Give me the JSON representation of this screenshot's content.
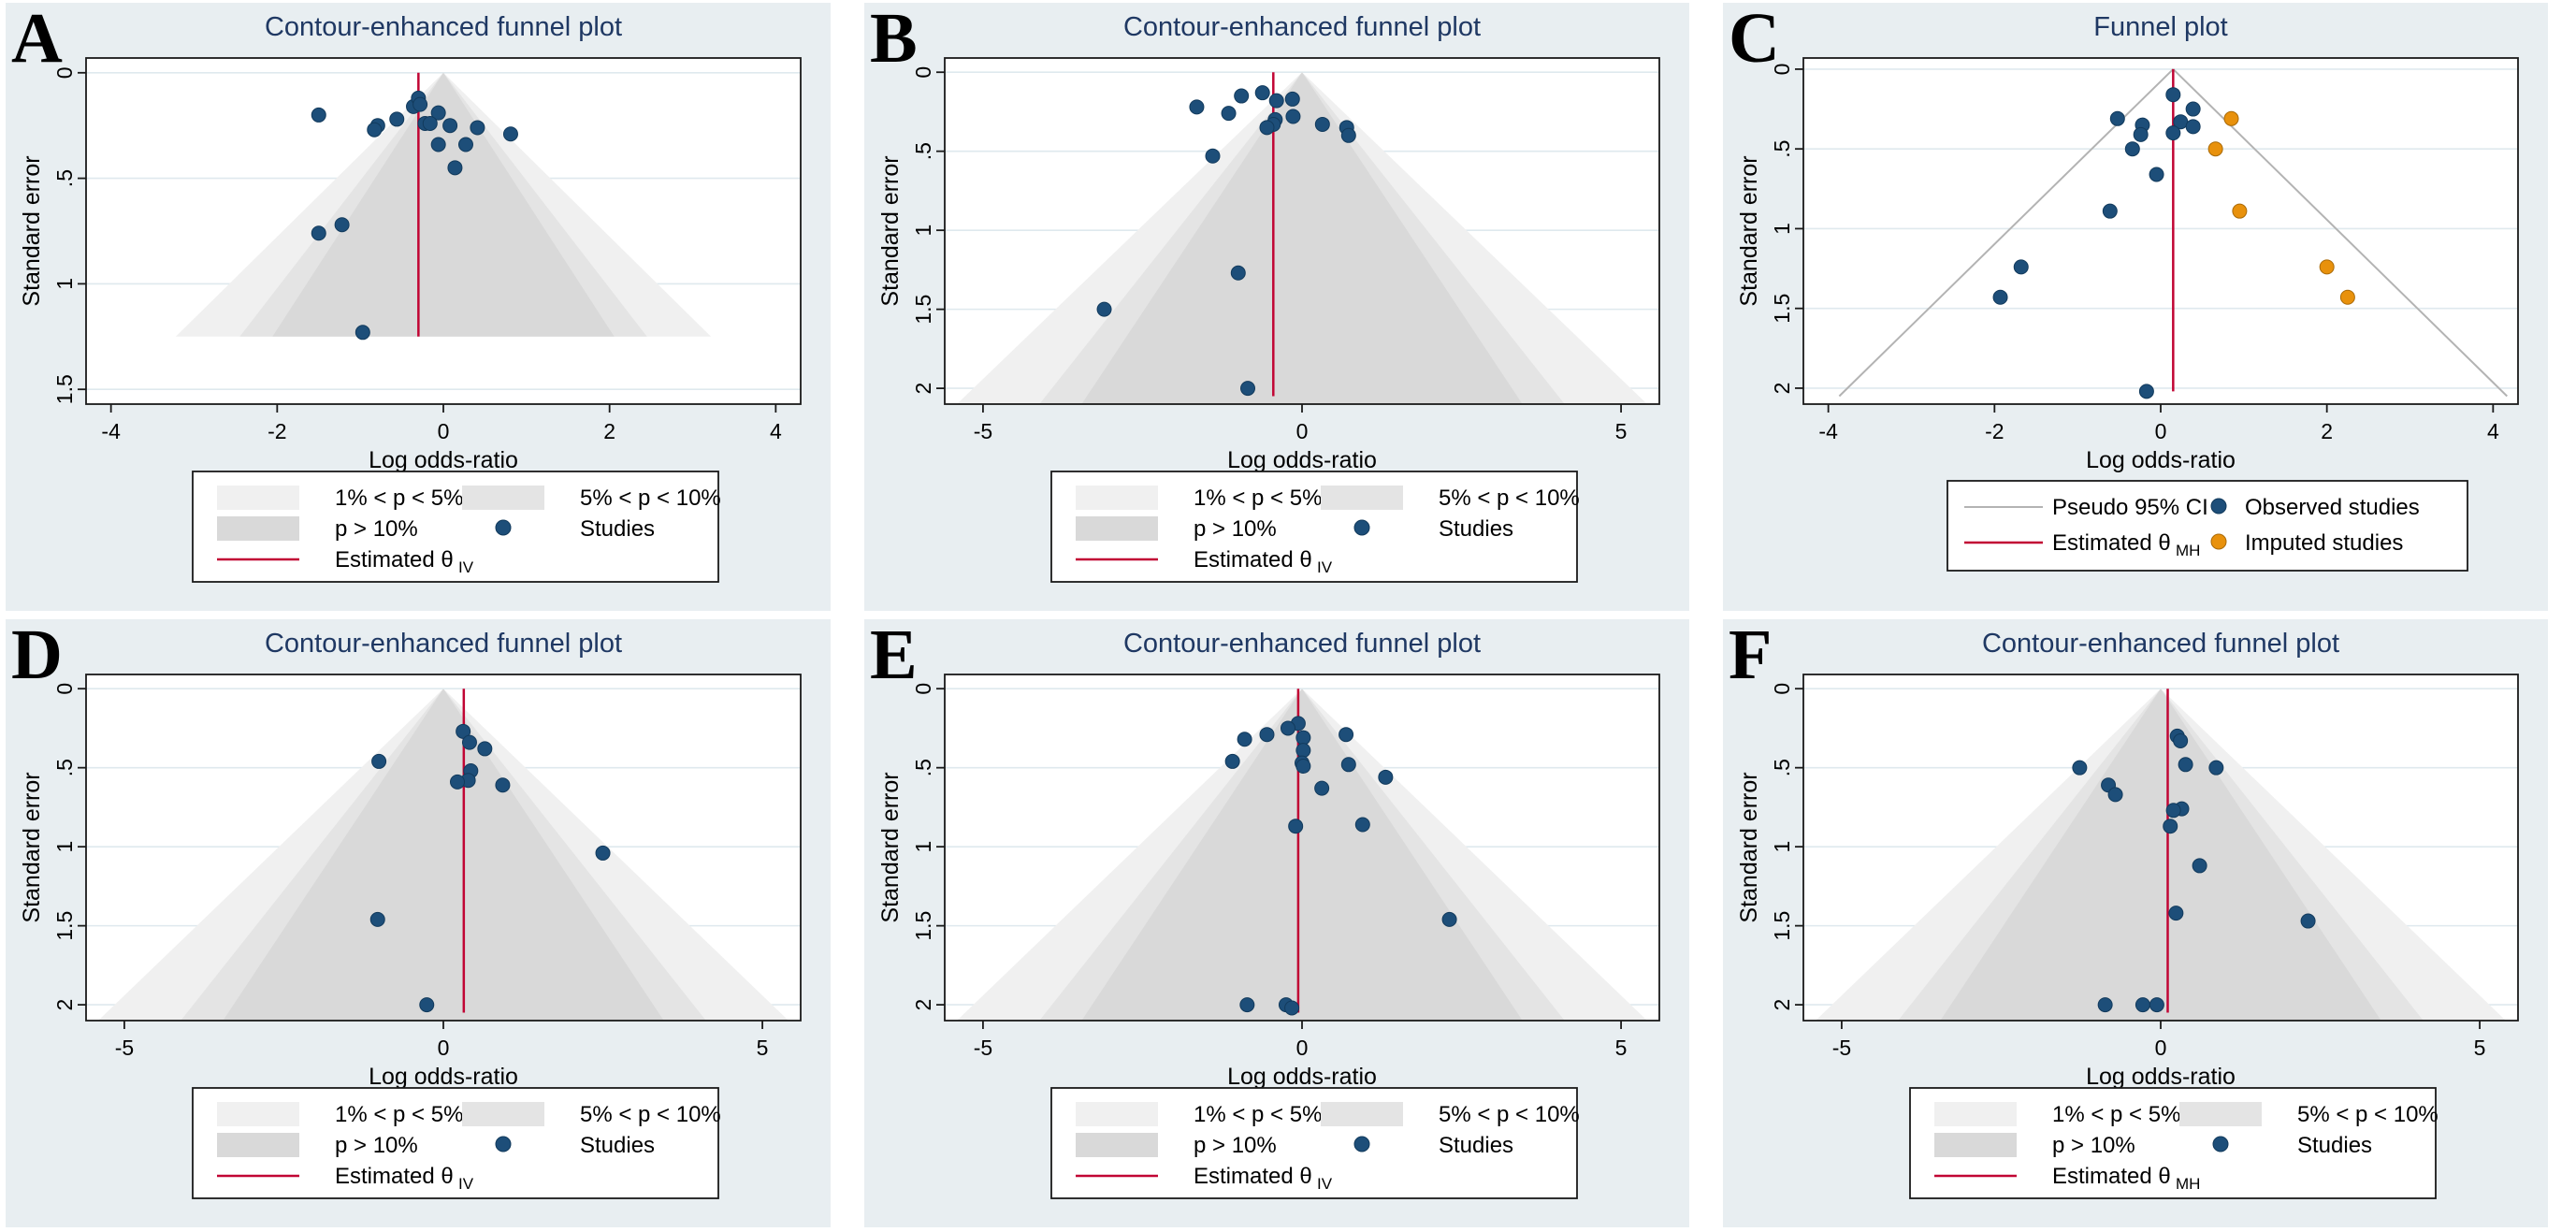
{
  "style": {
    "background": "#ffffff",
    "panel_bg": "#e8eef1",
    "title_color": "#1f3863",
    "text_color": "#000000",
    "axis_color": "#1a1a1a",
    "grid_color": "#dfe9ee",
    "point_color": "#1d4e79",
    "point_stroke": "#123a5c",
    "imputed_color": "#e8910c",
    "imputed_stroke": "#a96a08",
    "estimate_line_color": "#c10534",
    "pseudo_ci_color": "#b3b3b3",
    "contour_colors": [
      "#f0f0f0",
      "#e4e4e4",
      "#d9d9d9"
    ],
    "legend_bg": "#ffffff"
  },
  "chart_data": [
    {
      "panel": "A",
      "type": "contour-funnel",
      "title": "Contour-enhanced funnel plot",
      "xlabel": "Log odds-ratio",
      "ylabel": "Standard error",
      "x_range": [
        -4.3,
        4.3
      ],
      "y_range": [
        -0.07,
        1.57
      ],
      "x_ticks": [
        {
          "v": -4,
          "l": "-4"
        },
        {
          "v": -2,
          "l": "-2"
        },
        {
          "v": 0,
          "l": "0"
        },
        {
          "v": 2,
          "l": "2"
        },
        {
          "v": 4,
          "l": "4"
        }
      ],
      "y_ticks": [
        {
          "v": 0,
          "l": "0"
        },
        {
          "v": 0.5,
          "l": ".5"
        },
        {
          "v": 1,
          "l": "1"
        },
        {
          "v": 1.5,
          "l": "1.5"
        }
      ],
      "significance_z": {
        "p01": 2.576,
        "p05": 1.96,
        "p10": 1.645
      },
      "funnel_se_max": 1.25,
      "estimate": {
        "value": -0.3,
        "line_to": 1.25,
        "label": "Estimated θ",
        "sub": "IV"
      },
      "studies": [
        [
          -1.5,
          0.2
        ],
        [
          -0.36,
          0.16
        ],
        [
          -0.3,
          0.12
        ],
        [
          -0.28,
          0.15
        ],
        [
          -0.06,
          0.19
        ],
        [
          -0.56,
          0.22
        ],
        [
          -0.79,
          0.25
        ],
        [
          -0.83,
          0.27
        ],
        [
          -0.22,
          0.24
        ],
        [
          -0.16,
          0.24
        ],
        [
          0.08,
          0.25
        ],
        [
          0.41,
          0.26
        ],
        [
          0.81,
          0.29
        ],
        [
          -0.06,
          0.34
        ],
        [
          0.27,
          0.34
        ],
        [
          0.14,
          0.45
        ],
        [
          -1.22,
          0.72
        ],
        [
          -1.5,
          0.76
        ],
        [
          -0.97,
          1.23
        ]
      ],
      "legend": {
        "rows": [
          [
            {
              "swatch": "contour-light",
              "label": "1% < p < 5%"
            },
            {
              "swatch": "contour-mid",
              "label": "5% < p < 10%"
            }
          ],
          [
            {
              "swatch": "contour-dark",
              "label": "p > 10%"
            },
            {
              "swatch": "study-dot",
              "label": "Studies"
            }
          ],
          [
            {
              "swatch": "estimate-line",
              "label": "Estimated θ",
              "sub": "IV"
            }
          ]
        ]
      }
    },
    {
      "panel": "B",
      "type": "contour-funnel",
      "title": "Contour-enhanced funnel plot",
      "xlabel": "Log odds-ratio",
      "ylabel": "Standard error",
      "x_range": [
        -5.6,
        5.6
      ],
      "y_range": [
        -0.09,
        2.1
      ],
      "x_ticks": [
        {
          "v": -5,
          "l": "-5"
        },
        {
          "v": 0,
          "l": "0"
        },
        {
          "v": 5,
          "l": "5"
        }
      ],
      "y_ticks": [
        {
          "v": 0,
          "l": "0"
        },
        {
          "v": 0.5,
          "l": ".5"
        },
        {
          "v": 1,
          "l": "1"
        },
        {
          "v": 1.5,
          "l": "1.5"
        },
        {
          "v": 2,
          "l": "2"
        }
      ],
      "significance_z": {
        "p01": 2.576,
        "p05": 1.96,
        "p10": 1.645
      },
      "funnel_se_max": 2.1,
      "estimate": {
        "value": -0.45,
        "line_to": 2.05,
        "label": "Estimated θ",
        "sub": "IV"
      },
      "studies": [
        [
          -1.65,
          0.22
        ],
        [
          -1.15,
          0.26
        ],
        [
          -0.95,
          0.15
        ],
        [
          -0.62,
          0.13
        ],
        [
          -0.4,
          0.18
        ],
        [
          -0.42,
          0.3
        ],
        [
          -0.45,
          0.33
        ],
        [
          -0.55,
          0.35
        ],
        [
          -0.15,
          0.17
        ],
        [
          -0.14,
          0.28
        ],
        [
          0.32,
          0.33
        ],
        [
          0.7,
          0.35
        ],
        [
          0.73,
          0.4
        ],
        [
          -1.4,
          0.53
        ],
        [
          -1.0,
          1.27
        ],
        [
          -3.1,
          1.5
        ],
        [
          -0.85,
          2.0
        ]
      ],
      "legend": {
        "rows": [
          [
            {
              "swatch": "contour-light",
              "label": "1% < p < 5%"
            },
            {
              "swatch": "contour-mid",
              "label": "5% < p < 10%"
            }
          ],
          [
            {
              "swatch": "contour-dark",
              "label": "p > 10%"
            },
            {
              "swatch": "study-dot",
              "label": "Studies"
            }
          ],
          [
            {
              "swatch": "estimate-line",
              "label": "Estimated θ",
              "sub": "IV"
            }
          ]
        ]
      }
    },
    {
      "panel": "C",
      "type": "funnel",
      "title": "Funnel plot",
      "xlabel": "Log odds-ratio",
      "ylabel": "Standard error",
      "x_range": [
        -4.3,
        4.3
      ],
      "y_range": [
        -0.07,
        2.1
      ],
      "x_ticks": [
        {
          "v": -4,
          "l": "-4"
        },
        {
          "v": -2,
          "l": "-2"
        },
        {
          "v": 0,
          "l": "0"
        },
        {
          "v": 2,
          "l": "2"
        },
        {
          "v": 4,
          "l": "4"
        }
      ],
      "y_ticks": [
        {
          "v": 0,
          "l": "0"
        },
        {
          "v": 0.5,
          "l": ".5"
        },
        {
          "v": 1,
          "l": "1"
        },
        {
          "v": 1.5,
          "l": "1.5"
        },
        {
          "v": 2,
          "l": "2"
        }
      ],
      "pseudo_ci_z": 1.96,
      "ci_se_max": 2.05,
      "estimate": {
        "value": 0.15,
        "line_to": 2.02,
        "label": "Estimated θ",
        "sub": "MH"
      },
      "observed": [
        [
          0.15,
          0.16
        ],
        [
          0.39,
          0.25
        ],
        [
          -0.52,
          0.31
        ],
        [
          0.24,
          0.33
        ],
        [
          0.39,
          0.36
        ],
        [
          -0.22,
          0.35
        ],
        [
          -0.24,
          0.41
        ],
        [
          0.15,
          0.4
        ],
        [
          -0.34,
          0.5
        ],
        [
          -0.05,
          0.66
        ],
        [
          -0.61,
          0.89
        ],
        [
          -1.68,
          1.24
        ],
        [
          -1.93,
          1.43
        ],
        [
          -0.17,
          2.02
        ]
      ],
      "imputed": [
        [
          0.85,
          0.31
        ],
        [
          0.66,
          0.5
        ],
        [
          0.95,
          0.89
        ],
        [
          2.0,
          1.24
        ],
        [
          2.25,
          1.43
        ]
      ],
      "legend": {
        "rows": [
          [
            {
              "swatch": "ci-line",
              "label": "Pseudo 95% CI"
            },
            {
              "swatch": "study-dot",
              "label": "Observed studies"
            }
          ],
          [
            {
              "swatch": "estimate-line",
              "label": "Estimated θ",
              "sub": "MH"
            },
            {
              "swatch": "imputed-dot",
              "label": "Imputed studies"
            }
          ]
        ]
      }
    },
    {
      "panel": "D",
      "type": "contour-funnel",
      "title": "Contour-enhanced funnel plot",
      "xlabel": "Log odds-ratio",
      "ylabel": "Standard error",
      "x_range": [
        -5.6,
        5.6
      ],
      "y_range": [
        -0.09,
        2.1
      ],
      "x_ticks": [
        {
          "v": -5,
          "l": "-5"
        },
        {
          "v": 0,
          "l": "0"
        },
        {
          "v": 5,
          "l": "5"
        }
      ],
      "y_ticks": [
        {
          "v": 0,
          "l": "0"
        },
        {
          "v": 0.5,
          "l": ".5"
        },
        {
          "v": 1,
          "l": "1"
        },
        {
          "v": 1.5,
          "l": "1.5"
        },
        {
          "v": 2,
          "l": "2"
        }
      ],
      "significance_z": {
        "p01": 2.576,
        "p05": 1.96,
        "p10": 1.645
      },
      "funnel_se_max": 2.1,
      "estimate": {
        "value": 0.32,
        "line_to": 2.05,
        "label": "Estimated θ",
        "sub": "IV"
      },
      "studies": [
        [
          0.31,
          0.27
        ],
        [
          0.41,
          0.34
        ],
        [
          0.65,
          0.38
        ],
        [
          -1.01,
          0.46
        ],
        [
          0.43,
          0.52
        ],
        [
          0.39,
          0.58
        ],
        [
          0.22,
          0.59
        ],
        [
          0.93,
          0.61
        ],
        [
          2.5,
          1.04
        ],
        [
          -1.03,
          1.46
        ],
        [
          -0.26,
          2.0
        ]
      ],
      "legend": {
        "rows": [
          [
            {
              "swatch": "contour-light",
              "label": "1% < p < 5%"
            },
            {
              "swatch": "contour-mid",
              "label": "5% < p < 10%"
            }
          ],
          [
            {
              "swatch": "contour-dark",
              "label": "p > 10%"
            },
            {
              "swatch": "study-dot",
              "label": "Studies"
            }
          ],
          [
            {
              "swatch": "estimate-line",
              "label": "Estimated θ",
              "sub": "IV"
            }
          ]
        ]
      }
    },
    {
      "panel": "E",
      "type": "contour-funnel",
      "title": "Contour-enhanced funnel plot",
      "xlabel": "Log odds-ratio",
      "ylabel": "Standard error",
      "x_range": [
        -5.6,
        5.6
      ],
      "y_range": [
        -0.09,
        2.1
      ],
      "x_ticks": [
        {
          "v": -5,
          "l": "-5"
        },
        {
          "v": 0,
          "l": "0"
        },
        {
          "v": 5,
          "l": "5"
        }
      ],
      "y_ticks": [
        {
          "v": 0,
          "l": "0"
        },
        {
          "v": 0.5,
          "l": ".5"
        },
        {
          "v": 1,
          "l": "1"
        },
        {
          "v": 1.5,
          "l": "1.5"
        },
        {
          "v": 2,
          "l": "2"
        }
      ],
      "significance_z": {
        "p01": 2.576,
        "p05": 1.96,
        "p10": 1.645
      },
      "funnel_se_max": 2.1,
      "estimate": {
        "value": -0.06,
        "line_to": 2.05,
        "label": "Estimated θ",
        "sub": "IV"
      },
      "studies": [
        [
          -0.06,
          0.22
        ],
        [
          -0.22,
          0.25
        ],
        [
          -0.55,
          0.29
        ],
        [
          -0.9,
          0.32
        ],
        [
          0.69,
          0.29
        ],
        [
          0.02,
          0.31
        ],
        [
          0.02,
          0.39
        ],
        [
          0.0,
          0.47
        ],
        [
          0.02,
          0.49
        ],
        [
          -1.09,
          0.46
        ],
        [
          0.73,
          0.48
        ],
        [
          1.31,
          0.56
        ],
        [
          0.31,
          0.63
        ],
        [
          -0.1,
          0.87
        ],
        [
          0.95,
          0.86
        ],
        [
          2.31,
          1.46
        ],
        [
          -0.86,
          2.0
        ],
        [
          -0.25,
          2.0
        ],
        [
          -0.16,
          2.02
        ]
      ],
      "legend": {
        "rows": [
          [
            {
              "swatch": "contour-light",
              "label": "1% < p < 5%"
            },
            {
              "swatch": "contour-mid",
              "label": "5% < p < 10%"
            }
          ],
          [
            {
              "swatch": "contour-dark",
              "label": "p > 10%"
            },
            {
              "swatch": "study-dot",
              "label": "Studies"
            }
          ],
          [
            {
              "swatch": "estimate-line",
              "label": "Estimated θ",
              "sub": "IV"
            }
          ]
        ]
      }
    },
    {
      "panel": "F",
      "type": "contour-funnel",
      "title": "Contour-enhanced funnel plot",
      "xlabel": "Log odds-ratio",
      "ylabel": "Standard error",
      "x_range": [
        -5.6,
        5.6
      ],
      "y_range": [
        -0.09,
        2.1
      ],
      "x_ticks": [
        {
          "v": -5,
          "l": "-5"
        },
        {
          "v": 0,
          "l": "0"
        },
        {
          "v": 5,
          "l": "5"
        }
      ],
      "y_ticks": [
        {
          "v": 0,
          "l": "0"
        },
        {
          "v": 0.5,
          "l": ".5"
        },
        {
          "v": 1,
          "l": "1"
        },
        {
          "v": 1.5,
          "l": "1.5"
        },
        {
          "v": 2,
          "l": "2"
        }
      ],
      "significance_z": {
        "p01": 2.576,
        "p05": 1.96,
        "p10": 1.645
      },
      "funnel_se_max": 2.1,
      "estimate": {
        "value": 0.11,
        "line_to": 2.05,
        "label": "Estimated θ",
        "sub": "MH"
      },
      "studies": [
        [
          0.26,
          0.3
        ],
        [
          0.31,
          0.33
        ],
        [
          0.39,
          0.48
        ],
        [
          0.87,
          0.5
        ],
        [
          -1.27,
          0.5
        ],
        [
          -0.82,
          0.61
        ],
        [
          -0.71,
          0.67
        ],
        [
          0.33,
          0.76
        ],
        [
          0.2,
          0.77
        ],
        [
          0.15,
          0.87
        ],
        [
          0.61,
          1.12
        ],
        [
          0.24,
          1.42
        ],
        [
          2.31,
          1.47
        ],
        [
          -0.87,
          2.0
        ],
        [
          -0.28,
          2.0
        ],
        [
          -0.06,
          2.0
        ]
      ],
      "legend": {
        "rows": [
          [
            {
              "swatch": "contour-light",
              "label": "1% < p < 5%"
            },
            {
              "swatch": "contour-mid",
              "label": "5% < p < 10%"
            }
          ],
          [
            {
              "swatch": "contour-dark",
              "label": "p > 10%"
            },
            {
              "swatch": "study-dot",
              "label": "Studies"
            }
          ],
          [
            {
              "swatch": "estimate-line",
              "label": "Estimated θ",
              "sub": "MH"
            }
          ]
        ]
      }
    }
  ]
}
